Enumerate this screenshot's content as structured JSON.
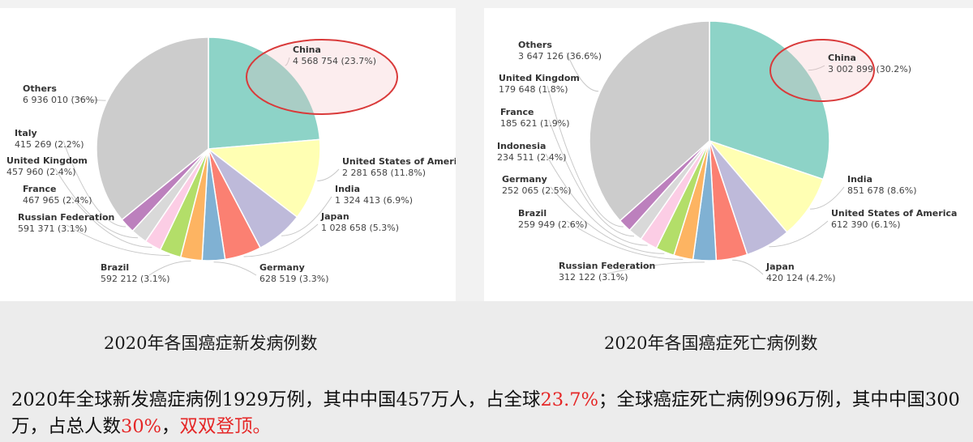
{
  "chart_data": [
    {
      "type": "pie",
      "caption": "2020年各国癌症新发病例数",
      "slices": [
        {
          "name": "China",
          "count": "4 568 754",
          "pct": "23.7%",
          "value": 23.7,
          "color": "#8dd3c7"
        },
        {
          "name": "United States of America",
          "count": "2 281 658",
          "pct": "11.8%",
          "value": 11.8,
          "color": "#ffffb3"
        },
        {
          "name": "India",
          "count": "1 324 413",
          "pct": "6.9%",
          "value": 6.9,
          "color": "#bebada"
        },
        {
          "name": "Japan",
          "count": "1 028 658",
          "pct": "5.3%",
          "value": 5.3,
          "color": "#fb8072"
        },
        {
          "name": "Germany",
          "count": "628 519",
          "pct": "3.3%",
          "value": 3.3,
          "color": "#80b1d3"
        },
        {
          "name": "Brazil",
          "count": "592 212",
          "pct": "3.1%",
          "value": 3.1,
          "color": "#fdb462"
        },
        {
          "name": "Russian Federation",
          "count": "591 371",
          "pct": "3.1%",
          "value": 3.1,
          "color": "#b3de69"
        },
        {
          "name": "France",
          "count": "467 965",
          "pct": "2.4%",
          "value": 2.4,
          "color": "#fccde5"
        },
        {
          "name": "United Kingdom",
          "count": "457 960",
          "pct": "2.4%",
          "value": 2.4,
          "color": "#d9d9d9"
        },
        {
          "name": "Italy",
          "count": "415 269",
          "pct": "2.2%",
          "value": 2.2,
          "color": "#bc80bd"
        },
        {
          "name": "Others",
          "count": "6 936 010",
          "pct": "36%",
          "value": 36,
          "color": "#cccccc"
        }
      ],
      "highlight": "China"
    },
    {
      "type": "pie",
      "caption": "2020年各国癌症死亡病例数",
      "slices": [
        {
          "name": "China",
          "count": "3 002 899",
          "pct": "30.2%",
          "value": 30.2,
          "color": "#8dd3c7"
        },
        {
          "name": "India",
          "count": "851 678",
          "pct": "8.6%",
          "value": 8.6,
          "color": "#ffffb3"
        },
        {
          "name": "United States of America",
          "count": "612 390",
          "pct": "6.1%",
          "value": 6.1,
          "color": "#bebada"
        },
        {
          "name": "Japan",
          "count": "420 124",
          "pct": "4.2%",
          "value": 4.2,
          "color": "#fb8072"
        },
        {
          "name": "Russian Federation",
          "count": "312 122",
          "pct": "3.1%",
          "value": 3.1,
          "color": "#80b1d3"
        },
        {
          "name": "Brazil",
          "count": "259 949",
          "pct": "2.6%",
          "value": 2.6,
          "color": "#fdb462"
        },
        {
          "name": "Germany",
          "count": "252 065",
          "pct": "2.5%",
          "value": 2.5,
          "color": "#b3de69"
        },
        {
          "name": "Indonesia",
          "count": "234 511",
          "pct": "2.4%",
          "value": 2.4,
          "color": "#fccde5"
        },
        {
          "name": "France",
          "count": "185 621",
          "pct": "1.9%",
          "value": 1.9,
          "color": "#d9d9d9"
        },
        {
          "name": "United Kingdom",
          "count": "179 648",
          "pct": "1.8%",
          "value": 1.8,
          "color": "#bc80bd"
        },
        {
          "name": "Others",
          "count": "3 647 126",
          "pct": "36.6%",
          "value": 36.6,
          "color": "#cccccc"
        }
      ],
      "highlight": "China"
    }
  ],
  "summary": {
    "part1": "2020年全球新发癌症病例1929万例，其中中国457万人，占全球",
    "hl1": "23.7%",
    "part2": "；全球癌症死亡病例996万例，其中中国300万，占总人数",
    "hl2": "30%",
    "part3": "，",
    "hl3": "双双登顶。"
  },
  "colors": {
    "highlight_ellipse": "#d93a3a",
    "highlight_text": "#e52626"
  }
}
